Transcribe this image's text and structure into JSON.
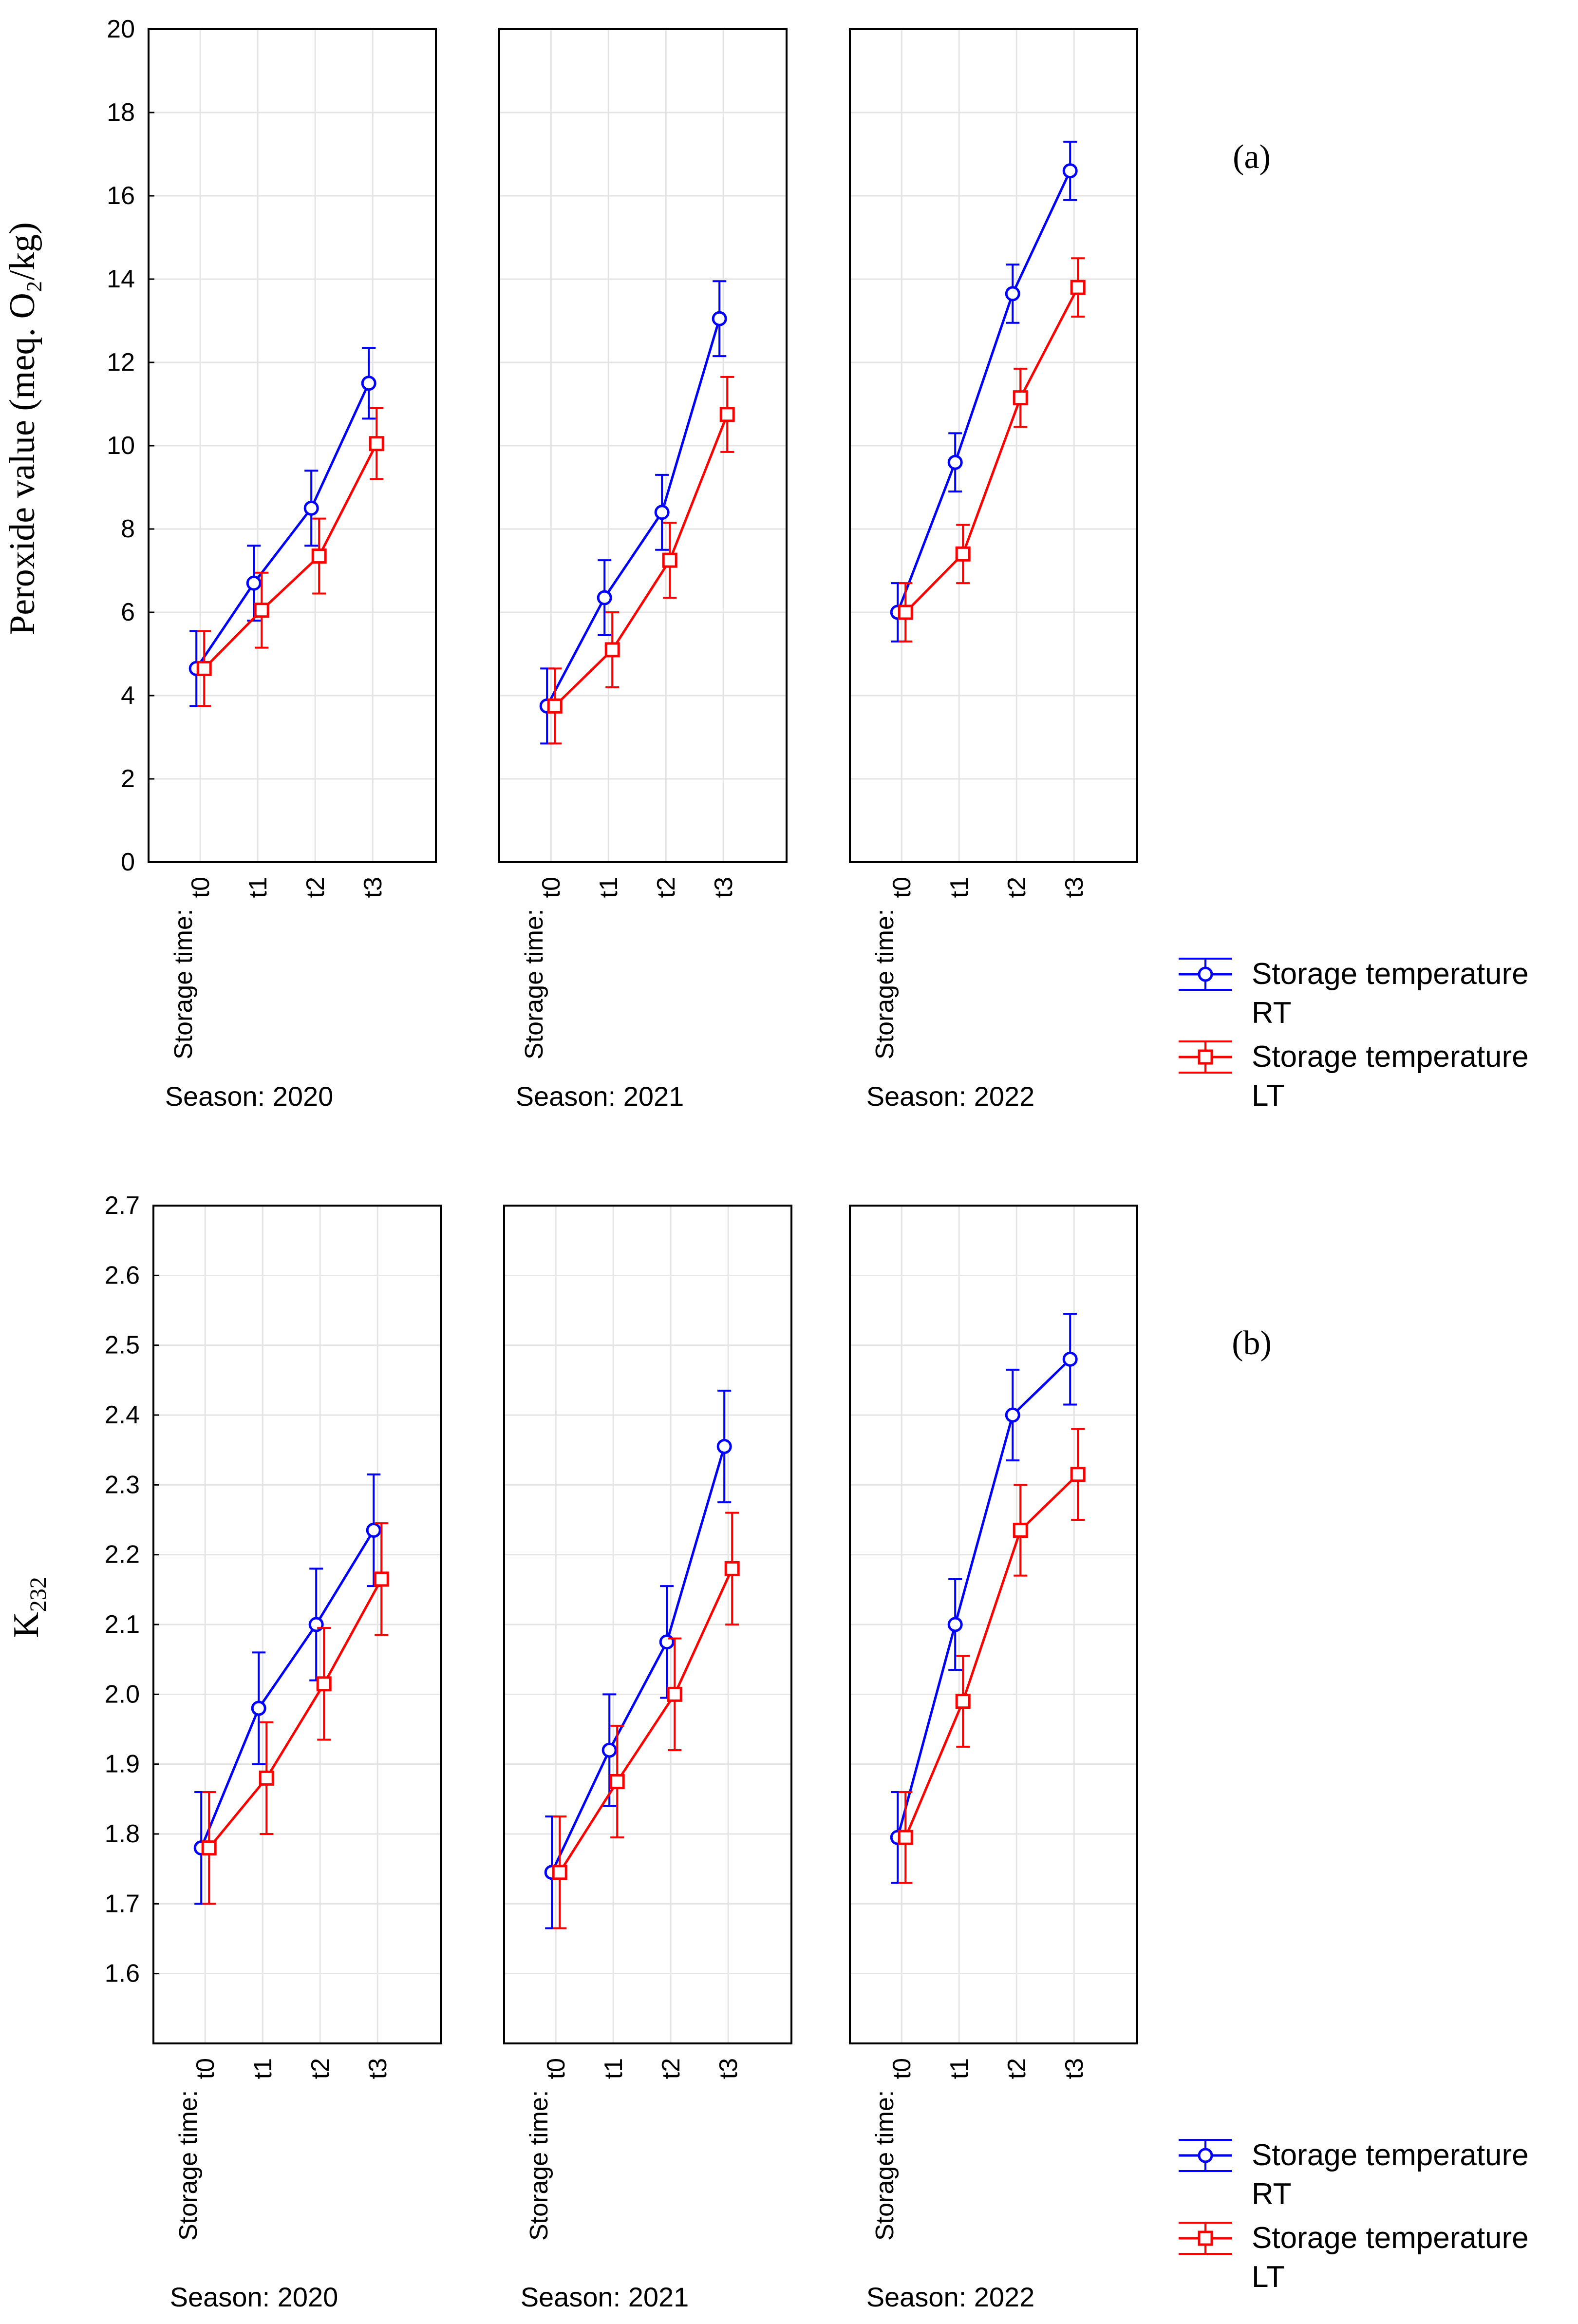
{
  "chart_data": [
    {
      "type": "line",
      "panel_label": "(a)",
      "ylabel": "Peroxide value (meq. O₂/kg)",
      "ylim": [
        0,
        20
      ],
      "yticks": [
        0,
        2,
        4,
        6,
        8,
        10,
        12,
        14,
        16,
        18,
        20
      ],
      "ytick_labels": [
        "0",
        "2",
        "4",
        "6",
        "8",
        "10",
        "12",
        "14",
        "16",
        "18",
        "20"
      ],
      "x_axis_title": "Storage time:",
      "categories": [
        "t0",
        "t1",
        "t2",
        "t3"
      ],
      "grid": true,
      "legend_position": "right",
      "panels": [
        {
          "season_label": "Season: 2020",
          "series": [
            {
              "name": "Storage temperature RT",
              "color": "#0000ff",
              "marker": "circle",
              "values": [
                4.65,
                6.7,
                8.5,
                11.5
              ],
              "err": [
                0.9,
                0.9,
                0.9,
                0.85
              ]
            },
            {
              "name": "Storage temperature LT",
              "color": "#ff0000",
              "marker": "square",
              "values": [
                4.65,
                6.05,
                7.35,
                10.05
              ],
              "err": [
                0.9,
                0.9,
                0.9,
                0.85
              ]
            }
          ]
        },
        {
          "season_label": "Season: 2021",
          "series": [
            {
              "name": "Storage temperature RT",
              "color": "#0000ff",
              "marker": "circle",
              "values": [
                3.75,
                6.35,
                8.4,
                13.05
              ],
              "err": [
                0.9,
                0.9,
                0.9,
                0.9
              ]
            },
            {
              "name": "Storage temperature LT",
              "color": "#ff0000",
              "marker": "square",
              "values": [
                3.75,
                5.1,
                7.25,
                10.75
              ],
              "err": [
                0.9,
                0.9,
                0.9,
                0.9
              ]
            }
          ]
        },
        {
          "season_label": "Season: 2022",
          "series": [
            {
              "name": "Storage temperature RT",
              "color": "#0000ff",
              "marker": "circle",
              "values": [
                6.0,
                9.6,
                13.65,
                16.6
              ],
              "err": [
                0.7,
                0.7,
                0.7,
                0.7
              ]
            },
            {
              "name": "Storage temperature LT",
              "color": "#ff0000",
              "marker": "square",
              "values": [
                6.0,
                7.4,
                11.15,
                13.8
              ],
              "err": [
                0.7,
                0.7,
                0.7,
                0.7
              ]
            }
          ]
        }
      ],
      "legend": [
        {
          "line1": "Storage temperature",
          "line2": "RT",
          "color": "#0000ff",
          "marker": "circle"
        },
        {
          "line1": "Storage temperature",
          "line2": "LT",
          "color": "#ff0000",
          "marker": "square"
        }
      ]
    },
    {
      "type": "line",
      "panel_label": "(b)",
      "ylabel": "K",
      "ylabel_sub": "232",
      "ylim": [
        1.5,
        2.7
      ],
      "yticks": [
        1.6,
        1.7,
        1.8,
        1.9,
        2.0,
        2.1,
        2.2,
        2.3,
        2.4,
        2.5,
        2.6,
        2.7
      ],
      "ytick_labels": [
        "1.6",
        "1.7",
        "1.8",
        "1.9",
        "2.0",
        "2.1",
        "2.2",
        "2.3",
        "2.4",
        "2.5",
        "2.6",
        "2.7"
      ],
      "x_axis_title": "Storage time:",
      "categories": [
        "t0",
        "t1",
        "t2",
        "t3"
      ],
      "grid": true,
      "legend_position": "right",
      "panels": [
        {
          "season_label": "Season: 2020",
          "series": [
            {
              "name": "Storage temperature RT",
              "color": "#0000ff",
              "marker": "circle",
              "values": [
                1.78,
                1.98,
                2.1,
                2.235
              ],
              "err": [
                0.08,
                0.08,
                0.08,
                0.08
              ]
            },
            {
              "name": "Storage temperature LT",
              "color": "#ff0000",
              "marker": "square",
              "values": [
                1.78,
                1.88,
                2.015,
                2.165
              ],
              "err": [
                0.08,
                0.08,
                0.08,
                0.08
              ]
            }
          ]
        },
        {
          "season_label": "Season: 2021",
          "series": [
            {
              "name": "Storage temperature RT",
              "color": "#0000ff",
              "marker": "circle",
              "values": [
                1.745,
                1.92,
                2.075,
                2.355
              ],
              "err": [
                0.08,
                0.08,
                0.08,
                0.08
              ]
            },
            {
              "name": "Storage temperature LT",
              "color": "#ff0000",
              "marker": "square",
              "values": [
                1.745,
                1.875,
                2.0,
                2.18
              ],
              "err": [
                0.08,
                0.08,
                0.08,
                0.08
              ]
            }
          ]
        },
        {
          "season_label": "Season: 2022",
          "series": [
            {
              "name": "Storage temperature RT",
              "color": "#0000ff",
              "marker": "circle",
              "values": [
                1.795,
                2.1,
                2.4,
                2.48
              ],
              "err": [
                0.065,
                0.065,
                0.065,
                0.065
              ]
            },
            {
              "name": "Storage temperature LT",
              "color": "#ff0000",
              "marker": "square",
              "values": [
                1.795,
                1.99,
                2.235,
                2.315
              ],
              "err": [
                0.065,
                0.065,
                0.065,
                0.065
              ]
            }
          ]
        }
      ],
      "legend": [
        {
          "line1": "Storage temperature",
          "line2": "RT",
          "color": "#0000ff",
          "marker": "circle"
        },
        {
          "line1": "Storage temperature",
          "line2": "LT",
          "color": "#ff0000",
          "marker": "square"
        }
      ]
    }
  ]
}
